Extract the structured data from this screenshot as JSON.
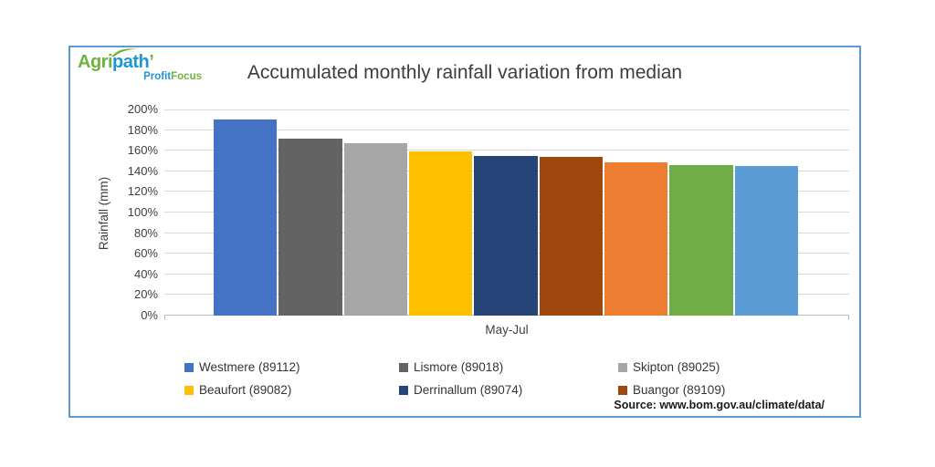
{
  "logo": {
    "brand_green": "Agri",
    "brand_blue": "path",
    "accent": "’",
    "sub_blue": "Profit",
    "sub_green": "Focus"
  },
  "source_note": "Source: www.bom.gov.au/climate/data/",
  "colors": {
    "frame_border": "#5B9BD5",
    "gridline": "#D9D9D9",
    "axis_line": "#BFBFBF",
    "text": "#404040",
    "logo_green": "#6CB33F",
    "logo_blue": "#1E96D2"
  },
  "chart_data": {
    "type": "bar",
    "title": "Accumulated monthly rainfall variation from median",
    "xlabel": "May-Jul",
    "ylabel": "Rainfall (mm)",
    "ylim": [
      0,
      200
    ],
    "ytick_step": 20,
    "ytick_suffix": "%",
    "grid": true,
    "legend_position": "bottom",
    "categories": [
      "May-Jul"
    ],
    "series": [
      {
        "name": "Westmere (89112)",
        "color": "#4472C4",
        "value": 190,
        "in_legend": true
      },
      {
        "name": "Lismore (89018)",
        "color": "#636363",
        "value": 172,
        "in_legend": true
      },
      {
        "name": "Skipton (89025)",
        "color": "#A6A6A6",
        "value": 167,
        "in_legend": true
      },
      {
        "name": "Beaufort (89082)",
        "color": "#FFC000",
        "value": 159,
        "in_legend": true
      },
      {
        "name": "Derrinallum (89074)",
        "color": "#264478",
        "value": 155,
        "in_legend": true
      },
      {
        "name": "Buangor (89109)",
        "color": "#9E480E",
        "value": 154,
        "in_legend": true
      },
      {
        "name": "",
        "color": "#ED7D31",
        "value": 149,
        "in_legend": false
      },
      {
        "name": "",
        "color": "#70AD47",
        "value": 146,
        "in_legend": false
      },
      {
        "name": "",
        "color": "#5B9BD5",
        "value": 145,
        "in_legend": false
      }
    ]
  }
}
